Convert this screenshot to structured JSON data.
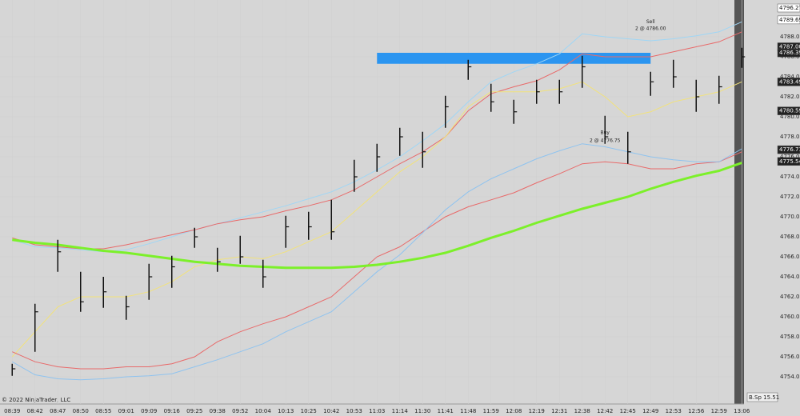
{
  "chart_data": {
    "type": "ohlc",
    "categories": [
      "08:39",
      "08:42",
      "08:47",
      "08:50",
      "08:55",
      "09:01",
      "09:09",
      "09:16",
      "09:25",
      "09:38",
      "09:52",
      "10:04",
      "10:13",
      "10:25",
      "10:42",
      "10:53",
      "11:03",
      "11:14",
      "11:30",
      "11:41",
      "11:48",
      "11:59",
      "12:08",
      "12:19",
      "12:31",
      "12:38",
      "12:42",
      "12:45",
      "12:49",
      "12:53",
      "12:56",
      "12:59",
      "13:06"
    ],
    "high": [
      4755.3,
      4761.3,
      4767.7,
      4764.5,
      4764,
      4762.1,
      4765.3,
      4766.1,
      4768.9,
      4766.9,
      4768.1,
      4765.7,
      4770.1,
      4770.5,
      4771.7,
      4775.7,
      4777.3,
      4778.9,
      4778.5,
      4782.1,
      4785.7,
      4783.3,
      4781.7,
      4783.7,
      4783.7,
      4786.1,
      4780.1,
      4778.5,
      4784.5,
      4785.7,
      4783.7,
      4784.1,
      4786.9
    ],
    "low": [
      4754.1,
      4756.5,
      4764.5,
      4760.5,
      4760.9,
      4759.7,
      4761.7,
      4762.9,
      4766.9,
      4764.5,
      4765.3,
      4762.9,
      4766.9,
      4767.7,
      4767.7,
      4772.5,
      4774.5,
      4776.1,
      4774.9,
      4778.9,
      4783.7,
      4780.5,
      4779.3,
      4781.3,
      4781.3,
      4782.9,
      4777.3,
      4775.3,
      4782.1,
      4782.9,
      4780.5,
      4781.3,
      4784.9
    ],
    "close": [
      4754.8,
      4760.5,
      4766.5,
      4761.5,
      4762.5,
      4761,
      4764,
      4765,
      4768,
      4765.5,
      4766,
      4764,
      4769,
      4769,
      4768.5,
      4774,
      4776,
      4778,
      4776.5,
      4781,
      4785,
      4781.5,
      4780.5,
      4782.5,
      4782.5,
      4785,
      4778,
      4776.5,
      4783.5,
      4784,
      4782,
      4783,
      4786
    ],
    "bar_color": "#111111",
    "series": [
      {
        "color": "#9fd6f5",
        "values": [
          4767.7,
          4767,
          4766.9,
          4766.7,
          4766.5,
          4766.7,
          4767.3,
          4768,
          4768.7,
          4769.3,
          4769.9,
          4770.5,
          4771.1,
          4771.8,
          4772.5,
          4773.5,
          4774.7,
          4776,
          4777.6,
          4779.3,
          4781.5,
          4783.5,
          4784.5,
          4785.3,
          4786.3,
          4788.3,
          4788,
          4787.8,
          4787.6,
          4787.8,
          4788.1,
          4788.5,
          4789.5
        ]
      },
      {
        "color": "#e86a6a",
        "values": [
          4767.9,
          4767.2,
          4767,
          4766.8,
          4766.8,
          4767.2,
          4767.7,
          4768.2,
          4768.7,
          4769.3,
          4769.7,
          4770,
          4770.6,
          4771.1,
          4771.7,
          4772.7,
          4774,
          4775.3,
          4776.5,
          4778,
          4780.6,
          4782.3,
          4783,
          4783.6,
          4784.7,
          4786.3,
          4786,
          4786,
          4786,
          4786.5,
          4787,
          4787.5,
          4788.5
        ]
      },
      {
        "color": "#f2e27a",
        "values": [
          4756,
          4758.5,
          4761,
          4762,
          4762,
          4762,
          4762.5,
          4763.5,
          4765,
          4765.7,
          4766,
          4765.8,
          4766.5,
          4767.5,
          4768.5,
          4770.5,
          4772.5,
          4774.5,
          4776,
          4778,
          4781,
          4782.5,
          4782.5,
          4782.5,
          4782.8,
          4783.5,
          4782,
          4780,
          4780.5,
          4781.5,
          4782,
          4782.5,
          4783.5
        ]
      },
      {
        "color": "#e86a6a",
        "values": [
          4756.5,
          4755.5,
          4755,
          4754.8,
          4754.8,
          4755,
          4755,
          4755.3,
          4756,
          4757.5,
          4758.5,
          4759.3,
          4760,
          4761,
          4762,
          4764,
          4766,
          4767,
          4768.5,
          4770,
          4771,
          4771.7,
          4772.4,
          4773.4,
          4774.3,
          4775.3,
          4775.5,
          4775.3,
          4774.8,
          4774.8,
          4775.3,
          4775.5,
          4776.5
        ]
      },
      {
        "color": "#8fc3ef",
        "values": [
          4755.5,
          4754.2,
          4753.8,
          4753.7,
          4753.8,
          4754,
          4754.1,
          4754.3,
          4755,
          4755.7,
          4756.5,
          4757.3,
          4758.5,
          4759.5,
          4760.5,
          4762.5,
          4764.5,
          4766.2,
          4768.4,
          4770.7,
          4772.5,
          4773.8,
          4774.8,
          4775.8,
          4776.6,
          4777.3,
          4777,
          4776.5,
          4776,
          4775.7,
          4775.5,
          4775.5,
          4776.8
        ]
      },
      {
        "color": "#7cf02a",
        "width": 3,
        "values": [
          4767.7,
          4767.4,
          4767.2,
          4766.9,
          4766.6,
          4766.4,
          4766.1,
          4765.8,
          4765.5,
          4765.3,
          4765.1,
          4765,
          4764.9,
          4764.9,
          4764.9,
          4765,
          4765.2,
          4765.5,
          4765.9,
          4766.4,
          4767.1,
          4767.9,
          4768.6,
          4769.4,
          4770.1,
          4770.8,
          4771.4,
          4772,
          4772.8,
          4773.5,
          4774.1,
          4774.6,
          4775.4
        ]
      }
    ],
    "zone": {
      "low": 4785.3,
      "high": 4786.4,
      "from": "11:03",
      "to": "12:49",
      "color": "#2b95f0"
    },
    "ylim": [
      4751.28,
      4791.68
    ],
    "yticks": [
      {
        "value": 4754,
        "label": "4754.00"
      },
      {
        "value": 4756,
        "label": "4756.00"
      },
      {
        "value": 4758,
        "label": "4758.00"
      },
      {
        "value": 4760,
        "label": "4760.00"
      },
      {
        "value": 4762,
        "label": "4762.00"
      },
      {
        "value": 4764,
        "label": "4764.00"
      },
      {
        "value": 4766,
        "label": "4766.00"
      },
      {
        "value": 4768,
        "label": "4768.00"
      },
      {
        "value": 4770,
        "label": "4770.00"
      },
      {
        "value": 4772,
        "label": "4772.00"
      },
      {
        "value": 4774,
        "label": "4774.00"
      },
      {
        "value": 4776,
        "label": "4776.00"
      },
      {
        "value": 4778,
        "label": "4778.00"
      },
      {
        "value": 4780,
        "label": "4780.00"
      },
      {
        "value": 4782,
        "label": "4782.00"
      },
      {
        "value": 4784,
        "label": "4784.00"
      },
      {
        "value": 4786,
        "label": "4786.00"
      },
      {
        "value": 4788,
        "label": "4788.00"
      }
    ],
    "grid": true,
    "price_markers": [
      {
        "value": 4796.27,
        "label": "4796.27",
        "color": "#ffffff"
      },
      {
        "value": 4789.69,
        "label": "4789.69",
        "color": "#ffffff"
      },
      {
        "value": 4787.0,
        "label": "4787.00",
        "color": "#222222"
      },
      {
        "value": 4786.39,
        "label": "4786.39",
        "color": "#222222"
      },
      {
        "value": 4783.49,
        "label": "4783.49",
        "color": "#222222"
      },
      {
        "value": 4780.59,
        "label": "4780.59",
        "color": "#222222"
      },
      {
        "value": 4776.71,
        "label": "4776.71",
        "color": "#222222"
      },
      {
        "value": 4775.54,
        "label": "4775.54",
        "color": "#222222"
      }
    ],
    "annotations": [
      {
        "text": "Sell",
        "at": "12:49",
        "value": 4789.5
      },
      {
        "text": "2 @ 4786.00",
        "at": "12:49",
        "value": 4788.8
      },
      {
        "text": "Buy",
        "at": "12:42",
        "value": 4778.4
      },
      {
        "text": "2 @ 4776.75",
        "at": "12:42",
        "value": 4777.6
      }
    ],
    "copyright": "© 2022 NinjaTrader, LLC",
    "status": "B.Sp 15.51"
  }
}
